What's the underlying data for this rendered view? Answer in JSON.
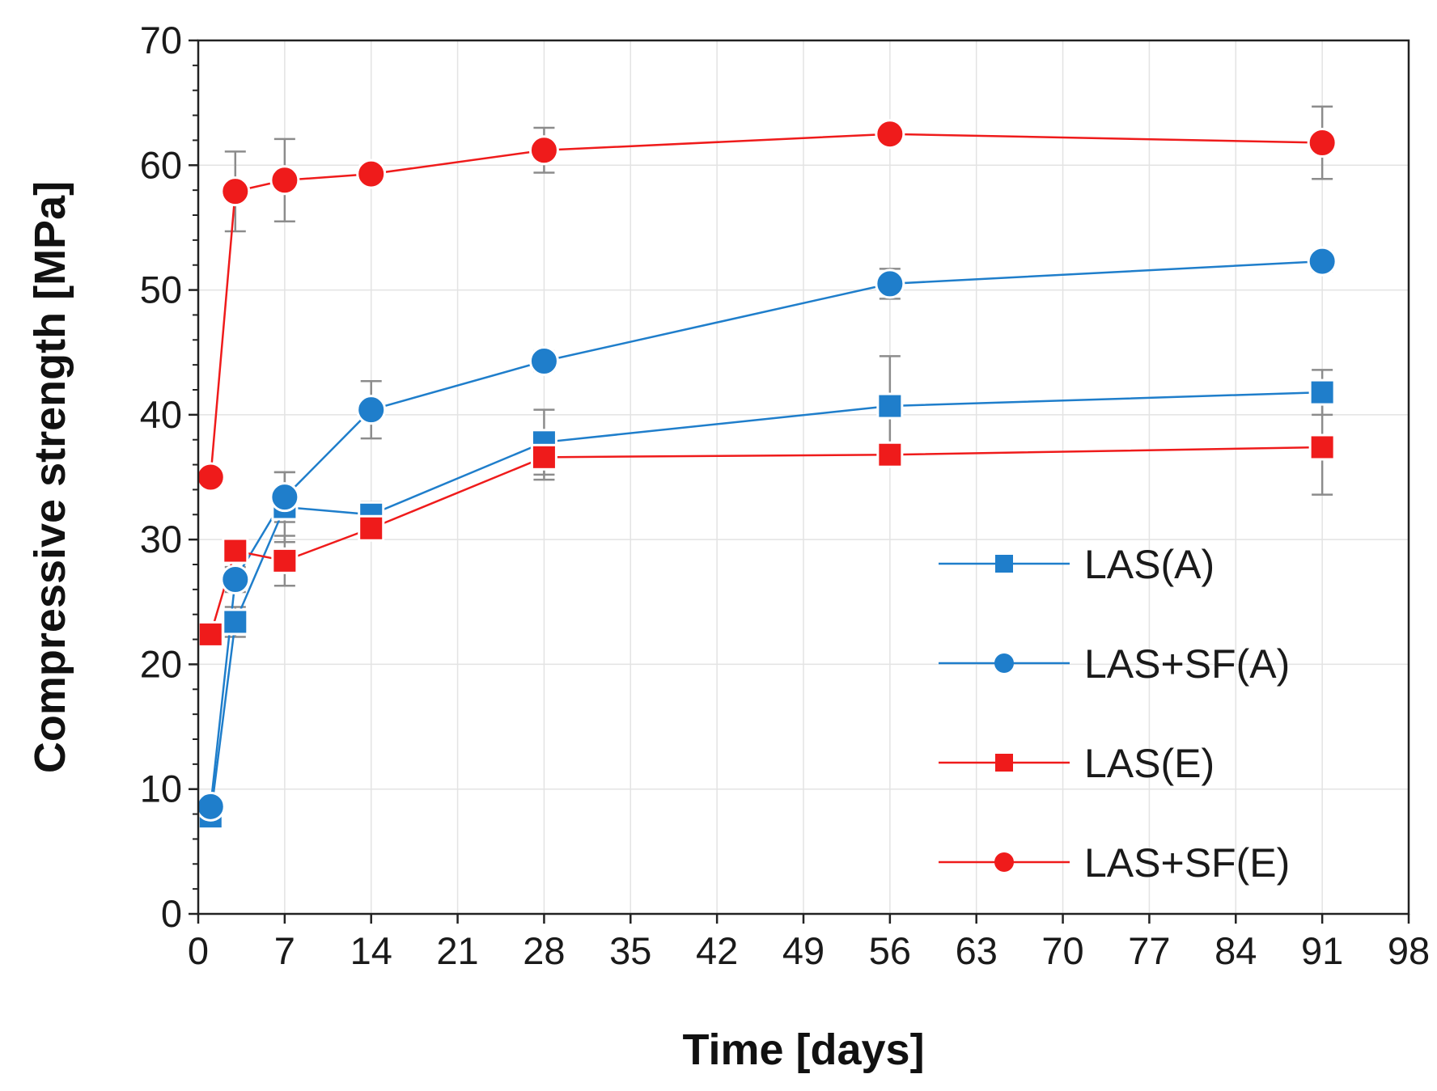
{
  "chart_data": {
    "type": "line",
    "title": "",
    "xlabel": "Time [days]",
    "ylabel": "Compressive strength [MPa]",
    "xlim": [
      0,
      98
    ],
    "ylim": [
      0,
      70
    ],
    "xticks": [
      0,
      7,
      14,
      21,
      28,
      35,
      42,
      49,
      56,
      63,
      70,
      77,
      84,
      91,
      98
    ],
    "yticks": [
      0,
      10,
      20,
      30,
      40,
      50,
      60,
      70
    ],
    "grid": true,
    "legend_position": "bottom-right",
    "series": [
      {
        "name": "LAS(A)",
        "color": "#1f7ecb",
        "marker": "square",
        "x": [
          1,
          3,
          7,
          14,
          28,
          56,
          91
        ],
        "values": [
          7.8,
          23.4,
          32.6,
          32.0,
          37.8,
          40.7,
          41.8
        ],
        "error": [
          0.5,
          1.2,
          2.8,
          1.0,
          2.6,
          4.0,
          1.8
        ]
      },
      {
        "name": "LAS+SF(A)",
        "color": "#1f7ecb",
        "marker": "circle",
        "x": [
          1,
          3,
          7,
          14,
          28,
          56,
          91
        ],
        "values": [
          8.6,
          26.8,
          33.4,
          40.4,
          44.3,
          50.5,
          52.3
        ],
        "error": [
          0.4,
          1.0,
          2.0,
          2.3,
          0.8,
          1.2,
          0.8
        ]
      },
      {
        "name": "LAS(E)",
        "color": "#ef1b1b",
        "marker": "square",
        "x": [
          1,
          3,
          7,
          14,
          28,
          56,
          91
        ],
        "values": [
          22.4,
          29.1,
          28.3,
          30.9,
          36.6,
          36.8,
          37.4
        ],
        "error": [
          0.5,
          0.8,
          2.0,
          0.8,
          1.8,
          0.8,
          3.8
        ]
      },
      {
        "name": "LAS+SF(E)",
        "color": "#ef1b1b",
        "marker": "circle",
        "x": [
          1,
          3,
          7,
          14,
          28,
          56,
          91
        ],
        "values": [
          35.0,
          57.9,
          58.8,
          59.3,
          61.2,
          62.5,
          61.8
        ],
        "error": [
          0.4,
          3.2,
          3.3,
          0.6,
          1.8,
          0.6,
          2.9
        ]
      }
    ]
  }
}
